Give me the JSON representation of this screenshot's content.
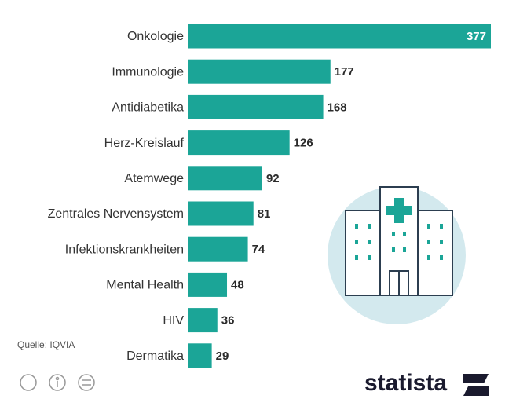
{
  "chart_data": {
    "type": "bar",
    "orientation": "horizontal",
    "categories": [
      "Onkologie",
      "Immunologie",
      "Antidiabetika",
      "Herz-Kreislauf",
      "Atemwege",
      "Zentrales Nervensystem",
      "Infektionskrankheiten",
      "Mental Health",
      "HIV",
      "Dermatika"
    ],
    "values": [
      377,
      177,
      168,
      126,
      92,
      81,
      74,
      48,
      36,
      29
    ],
    "color": "#1ba597",
    "source": "Quelle: IQVIA",
    "brand": "statista"
  }
}
